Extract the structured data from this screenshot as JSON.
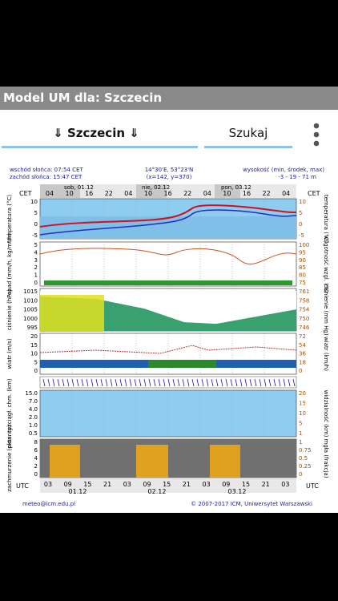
{
  "app_bar": {
    "title": "Model UM dla: Szczecin"
  },
  "tabs": {
    "city": "⇓ Szczecin ⇓",
    "search": "Szukaj"
  },
  "meteogram": {
    "sunrise": "wschód słońca: 07:54 CET",
    "sunset": "zachód słońca: 15:47 CET",
    "coords": "14°30'E, 53°23'N",
    "grid": "(x=142, y=370)",
    "height_label": "wysokość (min, środek, max)",
    "height_values": "-3 - 19 - 71 m",
    "top_zone": "CET",
    "top_hours": [
      "04",
      "10",
      "16",
      "22",
      "04",
      "10",
      "16",
      "22",
      "04",
      "10",
      "16",
      "22",
      "04"
    ],
    "days": [
      "sob, 01.12",
      "nie, 02.12",
      "pon, 03.12"
    ],
    "panels": [
      {
        "left_label": "temperatura (°C)",
        "right_label": "temperatura (°C)",
        "left_ticks": [
          "10",
          "5",
          "0",
          "-5"
        ],
        "right_ticks": [
          "10",
          "5",
          "0",
          "-5"
        ]
      },
      {
        "left_label": "opad (mm/h, kg/m²/h)",
        "right_label": "wilgotność wzgl. (%)",
        "left_ticks": [
          "5",
          "4",
          "3",
          "2",
          "1",
          "0"
        ],
        "right_ticks": [
          "100",
          "95",
          "90",
          "85",
          "80",
          "75"
        ]
      },
      {
        "left_label": "ciśnienie (hPa)",
        "right_label": "ciśnienie (mm Hg)",
        "left_ticks": [
          "1015",
          "1010",
          "1005",
          "1000",
          "995"
        ],
        "right_ticks": [
          "761",
          "758",
          "754",
          "750",
          "746"
        ]
      },
      {
        "left_label": "wiatr (m/s)",
        "right_label": "wiatr (km/h)",
        "left_ticks": [
          "20",
          "15",
          "10",
          "5",
          "0"
        ],
        "right_ticks": [
          "72",
          "54",
          "36",
          "18",
          "0"
        ]
      },
      {
        "left_label": "pion. rozciągł. chm. (km)",
        "right_label": "widzialność (km)",
        "left_ticks": [
          "15.0",
          "7.0",
          "4.0",
          "2.0",
          "1.0",
          "0.5"
        ],
        "right_ticks": [
          "20",
          "15",
          "10",
          "5",
          "1"
        ]
      },
      {
        "left_label": "zachmurzenie (oktanty)",
        "right_label": "mgła (frakcja)",
        "left_ticks": [
          "8",
          "6",
          "4",
          "2",
          "0"
        ],
        "right_ticks": [
          "1",
          "0.75",
          "0.5",
          "0.25",
          "0"
        ]
      }
    ],
    "bottom_zone": "UTC",
    "bottom_hours": [
      "03",
      "09",
      "15",
      "21",
      "03",
      "09",
      "15",
      "21",
      "03",
      "09",
      "15",
      "21",
      "03"
    ],
    "bottom_dates": [
      "01.12",
      "02.12",
      "03.12"
    ],
    "contact": "meteo@icm.edu.pl",
    "copyright": "© 2007-2017 ICM, Uniwersytet Warszawski"
  }
}
